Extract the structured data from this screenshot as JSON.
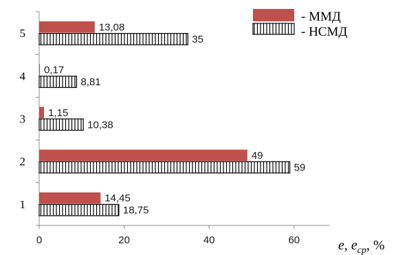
{
  "chart_data": {
    "type": "bar",
    "orientation": "horizontal",
    "categories": [
      "1",
      "2",
      "3",
      "4",
      "5"
    ],
    "series": [
      {
        "name": "- ММД",
        "values": [
          14.45,
          49,
          1.15,
          0.17,
          13.08
        ],
        "labels": [
          "14,45",
          "49",
          "1,15",
          "0,17",
          "13,08"
        ],
        "color": "#c0504d",
        "pattern": "solid"
      },
      {
        "name": "- НСМД",
        "values": [
          18.75,
          59,
          10.38,
          8.81,
          35
        ],
        "labels": [
          "18,75",
          "59",
          "10,38",
          "8,81",
          "35"
        ],
        "color": "#000000",
        "pattern": "vertical-hatch"
      }
    ],
    "xticks": [
      "0",
      "20",
      "40",
      "60"
    ],
    "xlim": [
      0,
      70
    ],
    "xlabel": {
      "e": "e",
      "comma": ", ",
      "ecp": "e",
      "sub": "cp",
      "unit": ", %"
    },
    "legend": "top-right",
    "grid": false
  }
}
